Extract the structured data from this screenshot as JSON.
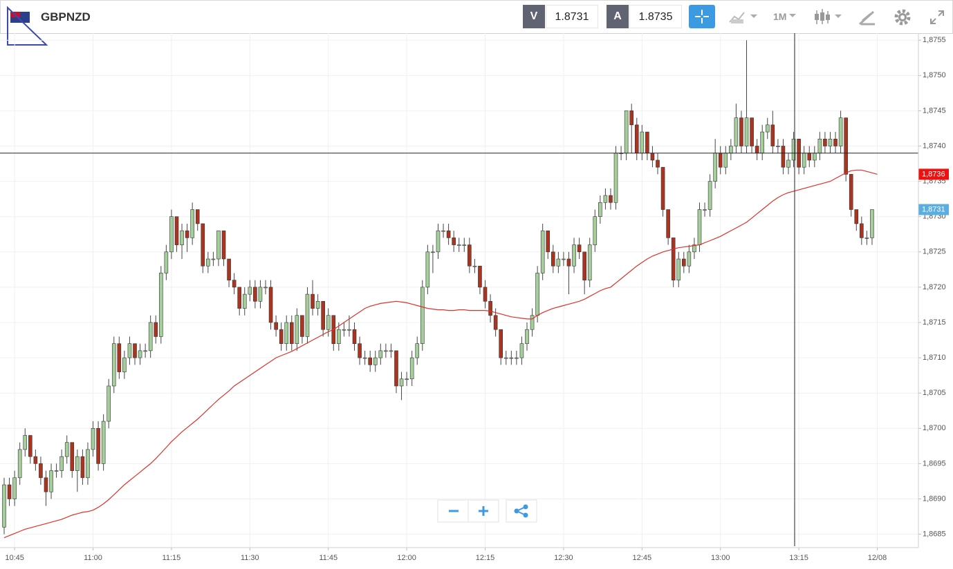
{
  "header": {
    "symbol": "GBPNZD",
    "bid_label": "V",
    "bid": "1.8731",
    "ask_label": "A",
    "ask": "1.8735",
    "timeframe": "1M"
  },
  "chart_data": {
    "type": "candlestick",
    "up_color": "#a5cf9a",
    "down_color": "#ab3421",
    "grid": true,
    "ylim": [
      1.86831,
      1.8756
    ],
    "yticks": [
      {
        "value": 1.8685,
        "label": "1,8685"
      },
      {
        "value": 1.869,
        "label": "1,8690"
      },
      {
        "value": 1.8695,
        "label": "1,8695"
      },
      {
        "value": 1.87,
        "label": "1,8700"
      },
      {
        "value": 1.8705,
        "label": "1,8705"
      },
      {
        "value": 1.871,
        "label": "1,8710"
      },
      {
        "value": 1.8715,
        "label": "1,8715"
      },
      {
        "value": 1.872,
        "label": "1,8720"
      },
      {
        "value": 1.8725,
        "label": "1,8725"
      },
      {
        "value": 1.873,
        "label": "1,8730"
      },
      {
        "value": 1.8735,
        "label": "1,8735"
      },
      {
        "value": 1.874,
        "label": "1,8740"
      },
      {
        "value": 1.8745,
        "label": "1,8745"
      },
      {
        "value": 1.875,
        "label": "1,8750"
      },
      {
        "value": 1.8755,
        "label": "1,8755"
      }
    ],
    "categories": [
      null,
      null,
      "10:45",
      null,
      null,
      null,
      null,
      null,
      null,
      null,
      null,
      null,
      null,
      null,
      null,
      null,
      null,
      "11:00",
      null,
      null,
      null,
      null,
      null,
      null,
      null,
      null,
      null,
      null,
      null,
      null,
      null,
      null,
      "11:15",
      null,
      null,
      null,
      null,
      null,
      null,
      null,
      null,
      null,
      null,
      null,
      null,
      null,
      null,
      "11:30",
      null,
      null,
      null,
      null,
      null,
      null,
      null,
      null,
      null,
      null,
      null,
      null,
      null,
      null,
      "11:45",
      null,
      null,
      null,
      null,
      null,
      null,
      null,
      null,
      null,
      null,
      null,
      null,
      null,
      null,
      "12:00",
      null,
      null,
      null,
      null,
      null,
      null,
      null,
      null,
      null,
      null,
      null,
      null,
      null,
      null,
      "12:15",
      null,
      null,
      null,
      null,
      null,
      null,
      null,
      null,
      null,
      null,
      null,
      null,
      null,
      null,
      "12:30",
      null,
      null,
      null,
      null,
      null,
      null,
      null,
      null,
      null,
      null,
      null,
      null,
      null,
      null,
      "12:45",
      null,
      null,
      null,
      null,
      null,
      null,
      null,
      null,
      null,
      null,
      null,
      null,
      null,
      null,
      "13:00",
      null,
      null,
      null,
      null,
      null,
      null,
      null,
      null,
      null,
      null,
      null,
      null,
      null,
      null,
      "13:15",
      null,
      null,
      null,
      null,
      null,
      null,
      null,
      null,
      null,
      null,
      null,
      null,
      null,
      null,
      "12/08"
    ],
    "open": [
      1.8686,
      1.8692,
      1.869,
      1.8693,
      1.8697,
      1.8699,
      1.8696,
      1.8695,
      1.8693,
      1.8691,
      1.8694,
      1.8694,
      1.8696,
      1.8698,
      1.8694,
      1.8696,
      1.8693,
      1.8697,
      1.87,
      1.8695,
      1.8701,
      1.8706,
      1.8712,
      1.8708,
      1.871,
      1.8712,
      1.871,
      1.8711,
      1.8711,
      1.8715,
      1.8713,
      1.8722,
      1.8725,
      1.873,
      1.8726,
      1.8728,
      1.8727,
      1.8731,
      1.8729,
      1.8723,
      1.8724,
      1.8724,
      1.8728,
      1.8724,
      1.8721,
      1.872,
      1.8717,
      1.8719,
      1.872,
      1.8718,
      1.872,
      1.872,
      1.8715,
      1.8714,
      1.8712,
      1.8715,
      1.8712,
      1.8716,
      1.8713,
      1.8719,
      1.8717,
      1.8718,
      1.8714,
      1.8716,
      1.8712,
      1.8714,
      1.8714,
      1.8714,
      1.8712,
      1.871,
      1.871,
      1.8709,
      1.871,
      1.8711,
      1.8711,
      1.8711,
      1.8706,
      1.8707,
      1.8707,
      1.871,
      1.8712,
      1.872,
      1.8725,
      1.8725,
      1.8728,
      1.8728,
      1.8727,
      1.8726,
      1.8726,
      1.8726,
      1.8723,
      1.8723,
      1.872,
      1.8718,
      1.8716,
      1.8714,
      1.871,
      1.871,
      1.871,
      1.871,
      1.8712,
      1.8714,
      1.8716,
      1.8722,
      1.8728,
      1.8725,
      1.8723,
      1.8724,
      1.8724,
      1.8723,
      1.8726,
      1.8725,
      1.8721,
      1.8726,
      1.873,
      1.8732,
      1.8733,
      1.8732,
      1.8739,
      1.8739,
      1.8745,
      1.8743,
      1.8739,
      1.8742,
      1.8739,
      1.8738,
      1.8737,
      1.8731,
      1.8727,
      1.8721,
      1.8724,
      1.8723,
      1.8725,
      1.8726,
      1.8731,
      1.8731,
      1.8735,
      1.8739,
      1.8737,
      1.8739,
      1.874,
      1.8744,
      1.874,
      1.8744,
      1.874,
      1.8739,
      1.8742,
      1.8743,
      1.874,
      1.874,
      1.8737,
      1.8738,
      1.8741,
      1.8737,
      1.8739,
      1.8738,
      1.8739,
      1.8741,
      1.874,
      1.8741,
      1.874,
      1.8744,
      1.8736,
      1.8731,
      1.8729,
      1.8727,
      1.8727,
      null
    ],
    "high": [
      1.8693,
      1.8693,
      1.8694,
      1.8698,
      1.87,
      1.8699,
      1.8697,
      1.8696,
      1.8694,
      1.8695,
      1.8695,
      1.8697,
      1.8699,
      1.8698,
      1.8697,
      1.8697,
      1.8698,
      1.8701,
      1.8701,
      1.8702,
      1.8707,
      1.8713,
      1.8713,
      1.8711,
      1.8713,
      1.8712,
      1.8712,
      1.8712,
      1.8716,
      1.8716,
      1.8723,
      1.8726,
      1.8731,
      1.873,
      1.8729,
      1.8729,
      1.8732,
      1.8731,
      1.8729,
      1.8725,
      1.8725,
      1.8728,
      1.8728,
      1.8724,
      1.8722,
      1.872,
      1.872,
      1.8721,
      1.8721,
      1.8721,
      1.8721,
      1.8721,
      1.8716,
      1.8715,
      1.8716,
      1.8716,
      1.8717,
      1.8716,
      1.872,
      1.8721,
      1.8719,
      1.8718,
      1.8717,
      1.8716,
      1.8715,
      1.8715,
      1.8716,
      1.8715,
      1.8713,
      1.8711,
      1.8711,
      1.8711,
      1.8712,
      1.8712,
      1.8712,
      1.8711,
      1.8708,
      1.8708,
      1.8711,
      1.8713,
      1.8721,
      1.8726,
      1.8726,
      1.8729,
      1.8729,
      1.8729,
      1.8728,
      1.8727,
      1.8727,
      1.8727,
      1.8724,
      1.8723,
      1.8721,
      1.8719,
      1.8717,
      1.8714,
      1.8711,
      1.8711,
      1.8711,
      1.8713,
      1.8715,
      1.8717,
      1.8723,
      1.8729,
      1.8728,
      1.8726,
      1.8725,
      1.8725,
      1.8725,
      1.8727,
      1.8727,
      1.8725,
      1.8727,
      1.8731,
      1.8733,
      1.8734,
      1.8734,
      1.874,
      1.874,
      1.8745,
      1.8746,
      1.8744,
      1.8743,
      1.8742,
      1.874,
      1.8739,
      1.8737,
      1.8731,
      1.8727,
      1.8725,
      1.8725,
      1.8726,
      1.8727,
      1.8732,
      1.8732,
      1.8736,
      1.8741,
      1.874,
      1.874,
      1.8741,
      1.8746,
      1.8745,
      1.8755,
      1.8744,
      1.8741,
      1.8743,
      1.8744,
      1.8745,
      1.8741,
      1.8741,
      1.8739,
      1.8742,
      1.8741,
      1.874,
      1.874,
      1.874,
      1.8742,
      1.8742,
      1.8742,
      1.8742,
      1.8745,
      1.8744,
      1.8736,
      1.8731,
      1.873,
      1.8728,
      1.8731,
      null
    ],
    "low": [
      1.8685,
      1.8689,
      1.8689,
      1.8692,
      1.8696,
      1.8695,
      1.8694,
      1.8692,
      1.8689,
      1.869,
      1.8693,
      1.8693,
      1.8695,
      1.8693,
      1.8691,
      1.8692,
      1.8692,
      1.8696,
      1.8694,
      1.8694,
      1.87,
      1.8705,
      1.8707,
      1.8707,
      1.8709,
      1.8709,
      1.8709,
      1.871,
      1.871,
      1.8712,
      1.8712,
      1.8721,
      1.8724,
      1.8725,
      1.8724,
      1.8725,
      1.8726,
      1.8728,
      1.8722,
      1.8722,
      1.8723,
      1.8723,
      1.8723,
      1.872,
      1.8719,
      1.8716,
      1.8716,
      1.8718,
      1.8717,
      1.8717,
      1.8719,
      1.8714,
      1.8713,
      1.8711,
      1.8711,
      1.8711,
      1.8711,
      1.8712,
      1.8712,
      1.8716,
      1.8716,
      1.8713,
      1.8713,
      1.8711,
      1.8711,
      1.8713,
      1.8713,
      1.8711,
      1.8709,
      1.8709,
      1.8708,
      1.8708,
      1.8709,
      1.871,
      1.871,
      1.8705,
      1.8704,
      1.8706,
      1.8706,
      1.8709,
      1.8711,
      1.8719,
      1.8722,
      1.8724,
      1.8727,
      1.8726,
      1.8725,
      1.8725,
      1.8725,
      1.8722,
      1.8722,
      1.8719,
      1.8717,
      1.8715,
      1.8713,
      1.8709,
      1.8709,
      1.8709,
      1.8709,
      1.8709,
      1.8711,
      1.8713,
      1.8715,
      1.8721,
      1.8724,
      1.8722,
      1.8722,
      1.8723,
      1.8719,
      1.8722,
      1.8724,
      1.8719,
      1.872,
      1.8725,
      1.8729,
      1.8731,
      1.8731,
      1.8731,
      1.8738,
      1.8738,
      1.8739,
      1.8738,
      1.8738,
      1.8738,
      1.8737,
      1.8736,
      1.873,
      1.8726,
      1.872,
      1.872,
      1.8722,
      1.8722,
      1.8724,
      1.8725,
      1.873,
      1.873,
      1.8734,
      1.8736,
      1.8736,
      1.8738,
      1.8739,
      1.8739,
      1.8739,
      1.8739,
      1.8738,
      1.8738,
      1.8741,
      1.8739,
      1.8739,
      1.8736,
      1.8736,
      1.8737,
      1.8736,
      1.8736,
      1.8737,
      1.8737,
      1.8738,
      1.8739,
      1.8739,
      1.8739,
      1.8739,
      1.8735,
      1.873,
      1.8728,
      1.8726,
      1.8726,
      1.8726,
      null
    ],
    "close": [
      1.8692,
      1.869,
      1.8693,
      1.8697,
      1.8699,
      1.8696,
      1.8695,
      1.8693,
      1.8691,
      1.8694,
      1.8694,
      1.8696,
      1.8698,
      1.8694,
      1.8696,
      1.8693,
      1.8697,
      1.87,
      1.8695,
      1.8701,
      1.8706,
      1.8712,
      1.8708,
      1.871,
      1.8712,
      1.871,
      1.8711,
      1.8711,
      1.8715,
      1.8713,
      1.8722,
      1.8725,
      1.873,
      1.8726,
      1.8728,
      1.8727,
      1.8731,
      1.8729,
      1.8723,
      1.8724,
      1.8724,
      1.8728,
      1.8724,
      1.8721,
      1.872,
      1.8717,
      1.8719,
      1.872,
      1.8718,
      1.872,
      1.872,
      1.8715,
      1.8714,
      1.8712,
      1.8715,
      1.8712,
      1.8716,
      1.8713,
      1.8719,
      1.8717,
      1.8718,
      1.8714,
      1.8716,
      1.8712,
      1.8714,
      1.8714,
      1.8714,
      1.8712,
      1.871,
      1.871,
      1.8709,
      1.871,
      1.8711,
      1.8711,
      1.8711,
      1.8706,
      1.8707,
      1.8707,
      1.871,
      1.8712,
      1.872,
      1.8725,
      1.8725,
      1.8728,
      1.8728,
      1.8727,
      1.8726,
      1.8726,
      1.8726,
      1.8723,
      1.8723,
      1.872,
      1.8718,
      1.8716,
      1.8714,
      1.871,
      1.871,
      1.871,
      1.871,
      1.8712,
      1.8714,
      1.8716,
      1.8722,
      1.8728,
      1.8725,
      1.8723,
      1.8724,
      1.8724,
      1.8723,
      1.8726,
      1.8725,
      1.8721,
      1.8726,
      1.873,
      1.8732,
      1.8733,
      1.8732,
      1.8739,
      1.8739,
      1.8745,
      1.8743,
      1.8739,
      1.8742,
      1.8739,
      1.8738,
      1.8737,
      1.8731,
      1.8727,
      1.8721,
      1.8724,
      1.8723,
      1.8725,
      1.8726,
      1.8731,
      1.8731,
      1.8735,
      1.8739,
      1.8737,
      1.8739,
      1.874,
      1.8744,
      1.874,
      1.8744,
      1.874,
      1.8739,
      1.8742,
      1.8743,
      1.874,
      1.874,
      1.8737,
      1.8738,
      1.8741,
      1.8737,
      1.8739,
      1.8738,
      1.8739,
      1.8741,
      1.874,
      1.8741,
      1.874,
      1.8744,
      1.8736,
      1.8731,
      1.8729,
      1.8727,
      1.8727,
      1.8731,
      null
    ],
    "ma": {
      "color": "#e0302a",
      "values": [
        1.86845,
        1.86848,
        1.86851,
        1.86854,
        1.86857,
        1.86859,
        1.86861,
        1.86863,
        1.86865,
        1.86867,
        1.86869,
        1.86871,
        1.86874,
        1.86877,
        1.86879,
        1.86881,
        1.86882,
        1.86884,
        1.86888,
        1.86893,
        1.86899,
        1.86906,
        1.86913,
        1.8692,
        1.86926,
        1.86932,
        1.86938,
        1.86944,
        1.8695,
        1.86957,
        1.86965,
        1.86973,
        1.86981,
        1.86988,
        1.86995,
        1.87001,
        1.87007,
        1.87013,
        1.8702,
        1.87027,
        1.87034,
        1.87041,
        1.87047,
        1.87053,
        1.8706,
        1.87065,
        1.8707,
        1.87075,
        1.8708,
        1.87085,
        1.8709,
        1.87095,
        1.871,
        1.87103,
        1.87106,
        1.87109,
        1.87113,
        1.87117,
        1.87121,
        1.87125,
        1.87129,
        1.87133,
        1.87137,
        1.8714,
        1.87145,
        1.8715,
        1.87155,
        1.8716,
        1.87165,
        1.8717,
        1.87173,
        1.87175,
        1.87177,
        1.87178,
        1.87179,
        1.8718,
        1.87179,
        1.87178,
        1.87176,
        1.87174,
        1.87172,
        1.8717,
        1.87169,
        1.87168,
        1.87168,
        1.87167,
        1.87167,
        1.87168,
        1.87168,
        1.87167,
        1.87167,
        1.87167,
        1.87167,
        1.87166,
        1.87164,
        1.87162,
        1.8716,
        1.87158,
        1.87157,
        1.87156,
        1.87155,
        1.87155,
        1.8716,
        1.87164,
        1.87167,
        1.8717,
        1.87172,
        1.87174,
        1.87176,
        1.87178,
        1.8718,
        1.87183,
        1.87187,
        1.87191,
        1.87195,
        1.87198,
        1.872,
        1.87206,
        1.87212,
        1.87218,
        1.87224,
        1.8723,
        1.87235,
        1.8724,
        1.87244,
        1.87247,
        1.8725,
        1.87252,
        1.87254,
        1.87256,
        1.87257,
        1.87258,
        1.87259,
        1.8726,
        1.87263,
        1.87266,
        1.87269,
        1.87272,
        1.87276,
        1.8728,
        1.87284,
        1.87288,
        1.87292,
        1.87298,
        1.87304,
        1.8731,
        1.87316,
        1.87322,
        1.87327,
        1.87331,
        1.87334,
        1.87336,
        1.87338,
        1.8734,
        1.87342,
        1.87344,
        1.87346,
        1.87348,
        1.8735,
        1.87354,
        1.87358,
        1.87362,
        1.87365,
        1.87366,
        1.87366,
        1.87364,
        1.87362,
        1.8736
      ]
    },
    "crosshair_price": 1.8739,
    "ma_tag": {
      "value": 1.8736,
      "label": "1,8736",
      "color": "#ee1111"
    },
    "last_tag": {
      "value": 1.8731,
      "label": "1,8731",
      "color": "#5aaee0"
    }
  }
}
